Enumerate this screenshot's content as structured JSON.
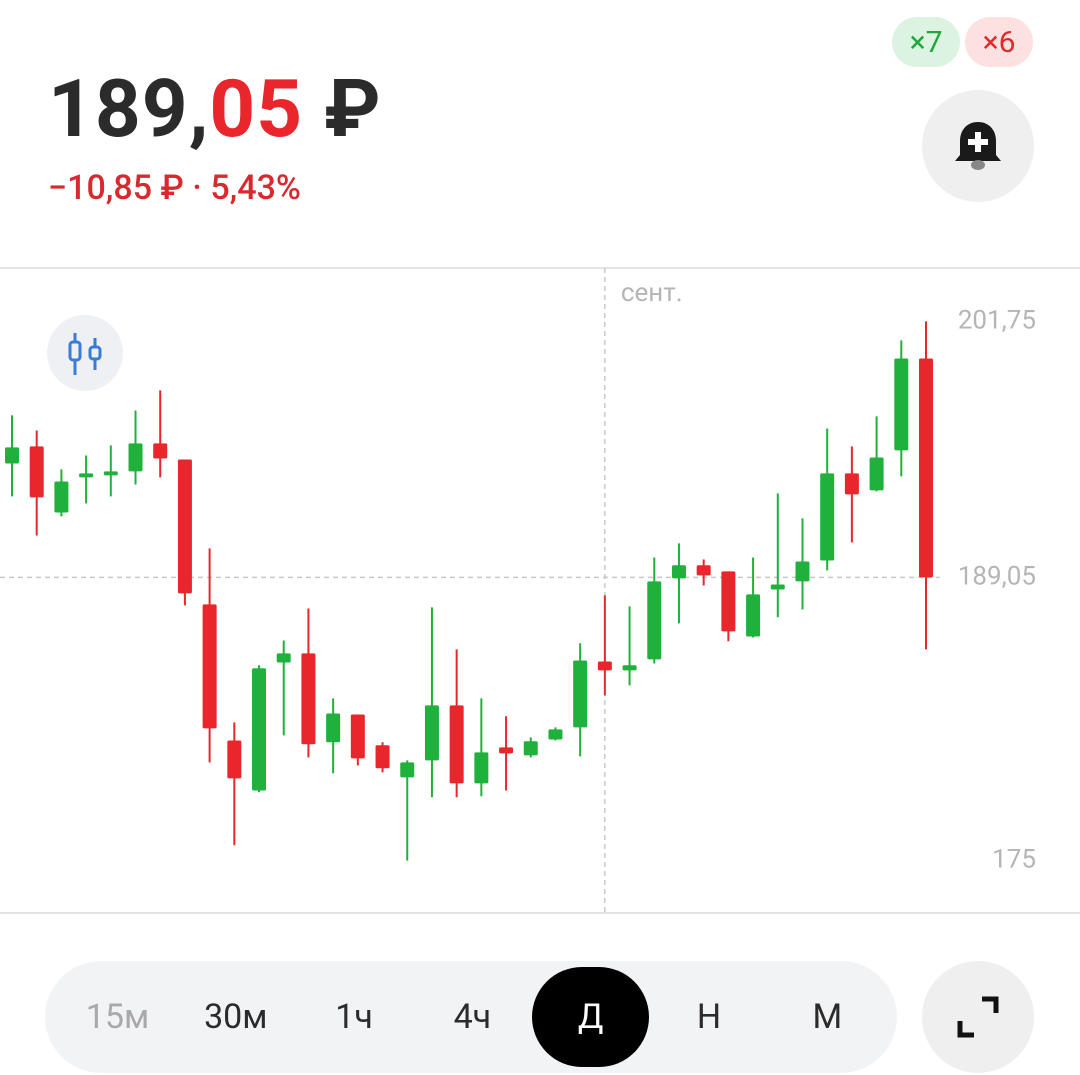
{
  "header": {
    "badges": [
      "×7",
      "×6"
    ],
    "price": {
      "integer": "189,",
      "fraction": "05",
      "currency": "₽"
    },
    "change": "−10,85 ₽ · 5,43%"
  },
  "chart_data": {
    "type": "candlestick",
    "categories": [
      null,
      null,
      null,
      null,
      null,
      null,
      null,
      null,
      null,
      null,
      null,
      null,
      null,
      null,
      null,
      null,
      null,
      null,
      null,
      null,
      null,
      null,
      null,
      null,
      "сент.",
      null,
      null,
      null,
      null,
      null,
      null,
      null,
      null,
      null,
      null,
      null,
      null,
      null
    ],
    "open": [
      194.7,
      195.55,
      192.27,
      194.11,
      194.26,
      194.31,
      195.7,
      194.9,
      187.71,
      180.96,
      178.48,
      184.83,
      185.28,
      180.87,
      182.25,
      180.72,
      179.13,
      179.97,
      182.7,
      178.83,
      180.62,
      180.22,
      181.01,
      181.61,
      184.88,
      184.44,
      184.98,
      189.0,
      189.65,
      189.35,
      186.12,
      188.45,
      188.85,
      189.89,
      194.21,
      193.37,
      195.35,
      199.91
    ],
    "high": [
      197.09,
      196.34,
      194.41,
      195.1,
      195.6,
      197.33,
      198.33,
      194.9,
      190.49,
      181.86,
      184.69,
      185.92,
      187.51,
      183.05,
      182.25,
      180.87,
      179.97,
      187.56,
      185.48,
      183.05,
      182.16,
      181.11,
      181.61,
      185.78,
      188.16,
      187.61,
      190.04,
      190.74,
      189.94,
      189.35,
      190.04,
      193.22,
      191.98,
      196.44,
      195.55,
      197.04,
      200.81,
      201.75
    ],
    "low": [
      193.07,
      191.13,
      192.08,
      192.72,
      193.07,
      193.66,
      194.01,
      187.66,
      179.87,
      175.76,
      178.39,
      181.21,
      180.12,
      179.33,
      179.72,
      179.38,
      175.0,
      178.14,
      178.14,
      178.19,
      178.48,
      180.12,
      180.96,
      180.17,
      183.2,
      183.69,
      184.78,
      186.77,
      188.65,
      185.88,
      186.07,
      187.07,
      187.46,
      189.4,
      190.79,
      193.32,
      194.06,
      185.48
    ],
    "close": [
      195.5,
      193.02,
      193.81,
      194.21,
      194.31,
      195.7,
      194.95,
      188.26,
      181.56,
      179.08,
      184.54,
      185.28,
      180.77,
      182.3,
      180.07,
      179.58,
      179.87,
      182.7,
      178.83,
      180.37,
      180.32,
      180.92,
      181.51,
      184.93,
      184.44,
      184.69,
      188.85,
      189.65,
      189.15,
      186.37,
      188.21,
      188.7,
      189.84,
      194.21,
      193.17,
      195.0,
      199.91,
      189.05
    ],
    "up_color": "#1fb13c",
    "down_color": "#e8262b",
    "current_price": 189.05,
    "ylim": [
      172.4,
      204.4
    ],
    "yticks": [
      {
        "value": 201.75,
        "label": "201,75"
      },
      {
        "value": 189.05,
        "label": "189,05"
      },
      175
    ]
  },
  "timeframes": {
    "options": [
      "15м",
      "30м",
      "1ч",
      "4ч",
      "Д",
      "Н",
      "М"
    ],
    "selected": 4,
    "disabled": [
      0
    ]
  }
}
